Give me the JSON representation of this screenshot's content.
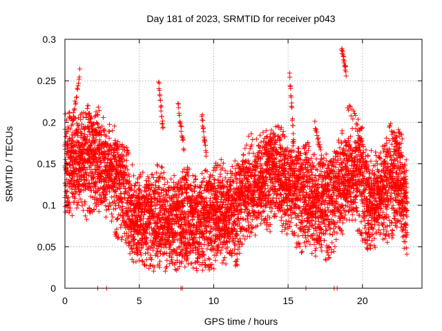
{
  "chart_data": {
    "type": "scatter",
    "title": "Day 181 of 2023, SRMTID for receiver p043",
    "xlabel": "GPS time / hours",
    "ylabel": "SRMTID / TECUs",
    "xlim": [
      0,
      24
    ],
    "ylim": [
      0,
      0.3
    ],
    "xticks": [
      0,
      5,
      10,
      15,
      20
    ],
    "yticks": [
      0,
      0.05,
      0.1,
      0.15,
      0.2,
      0.25,
      0.3
    ],
    "xtick_labels": [
      "0",
      "5",
      "10",
      "15",
      "20"
    ],
    "ytick_labels": [
      "0",
      "0.05",
      "0.1",
      "0.15",
      "0.2",
      "0.25",
      "0.3"
    ],
    "grid": true,
    "marker": "+",
    "marker_color": "#ff0000",
    "time_range_hours": [
      0,
      23
    ],
    "sample_interval_hours": 0.0125,
    "trend": [
      {
        "x": 0,
        "y": 0.145
      },
      {
        "x": 1,
        "y": 0.155
      },
      {
        "x": 2,
        "y": 0.15
      },
      {
        "x": 3,
        "y": 0.145
      },
      {
        "x": 3.8,
        "y": 0.12
      },
      {
        "x": 4.5,
        "y": 0.085
      },
      {
        "x": 5.5,
        "y": 0.082
      },
      {
        "x": 7,
        "y": 0.08
      },
      {
        "x": 8.5,
        "y": 0.08
      },
      {
        "x": 10,
        "y": 0.085
      },
      {
        "x": 11.5,
        "y": 0.095
      },
      {
        "x": 13,
        "y": 0.13
      },
      {
        "x": 14,
        "y": 0.14
      },
      {
        "x": 15,
        "y": 0.125
      },
      {
        "x": 16,
        "y": 0.11
      },
      {
        "x": 17,
        "y": 0.1
      },
      {
        "x": 18,
        "y": 0.105
      },
      {
        "x": 19,
        "y": 0.135
      },
      {
        "x": 19.8,
        "y": 0.14
      },
      {
        "x": 20.3,
        "y": 0.095
      },
      {
        "x": 21.5,
        "y": 0.12
      },
      {
        "x": 22.5,
        "y": 0.13
      },
      {
        "x": 23,
        "y": 0.1
      }
    ],
    "spread": 0.045,
    "seed": 181,
    "passes": [
      {
        "x0": 0.5,
        "x1": 1.0,
        "y0": 0.2,
        "y1": 0.26
      },
      {
        "x0": 1.5,
        "x1": 2.0,
        "y0": 0.22,
        "y1": 0.18
      },
      {
        "x0": 6.3,
        "x1": 6.6,
        "y0": 0.25,
        "y1": 0.19
      },
      {
        "x0": 7.6,
        "x1": 8.0,
        "y0": 0.22,
        "y1": 0.17
      },
      {
        "x0": 9.2,
        "x1": 9.5,
        "y0": 0.21,
        "y1": 0.16
      },
      {
        "x0": 15.1,
        "x1": 15.4,
        "y0": 0.26,
        "y1": 0.17
      },
      {
        "x0": 16.8,
        "x1": 17.3,
        "y0": 0.2,
        "y1": 0.15
      },
      {
        "x0": 18.6,
        "x1": 18.9,
        "y0": 0.29,
        "y1": 0.26
      },
      {
        "x0": 19.0,
        "x1": 20.0,
        "y0": 0.22,
        "y1": 0.19
      },
      {
        "x0": 21.8,
        "x1": 22.6,
        "y0": 0.2,
        "y1": 0.16
      }
    ],
    "zero_points": [
      2.2,
      2.8,
      7.8,
      7.9,
      16.2,
      18.1,
      18.3
    ]
  }
}
